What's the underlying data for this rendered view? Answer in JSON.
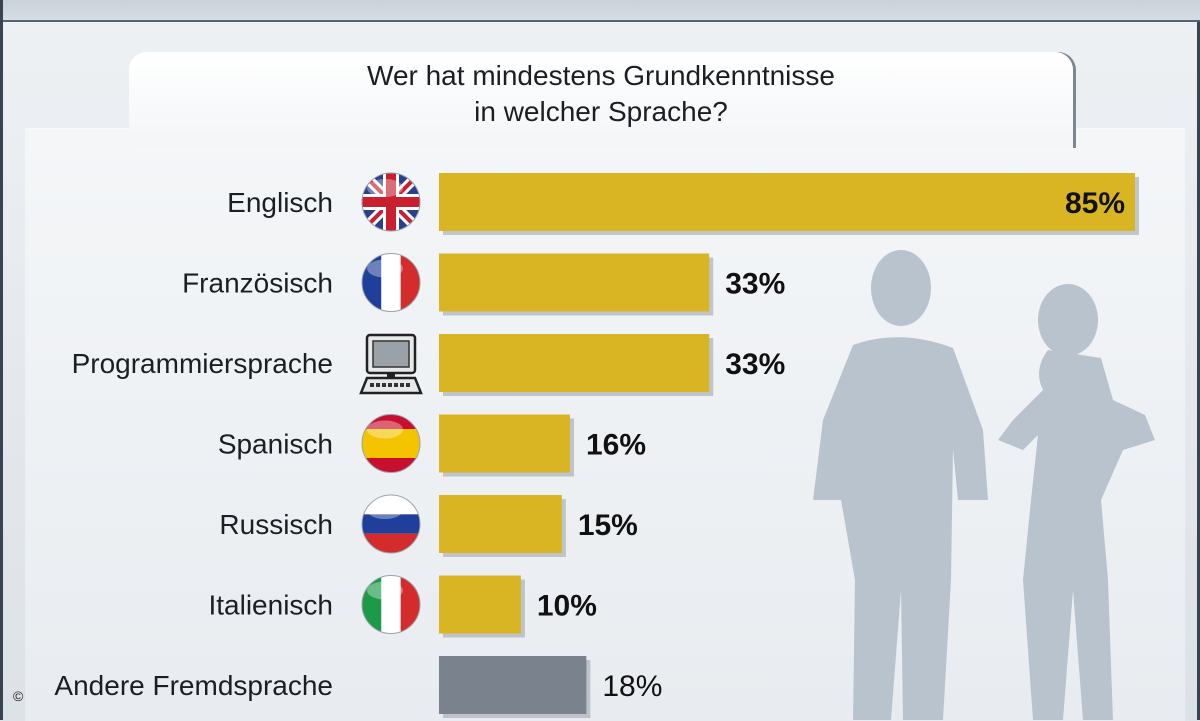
{
  "question": {
    "line1": "Wer hat mindestens Grundkenntnisse",
    "line2": "in welcher Sprache?"
  },
  "copyright": "©",
  "colors": {
    "bar": "#d9b524",
    "bar_other": "#7a838d",
    "panel": "#eceff2",
    "silhouette": "#b9c3cd"
  },
  "chart_data": {
    "type": "bar",
    "orientation": "horizontal",
    "categories": [
      "Englisch",
      "Französisch",
      "Programmiersprache",
      "Spanisch",
      "Russisch",
      "Italienisch",
      "Andere Fremdsprache"
    ],
    "values": [
      85,
      33,
      33,
      16,
      15,
      10,
      18
    ],
    "value_labels": [
      "85%",
      "33%",
      "33%",
      "16%",
      "15%",
      "10%",
      "18%"
    ],
    "icons": [
      "uk-flag-icon",
      "france-flag-icon",
      "computer-icon",
      "spain-flag-icon",
      "russia-flag-icon",
      "italy-flag-icon",
      ""
    ],
    "unit": "%",
    "title": "Wer hat mindestens Grundkenntnisse in welcher Sprache?",
    "grid": false,
    "legend": "none"
  }
}
